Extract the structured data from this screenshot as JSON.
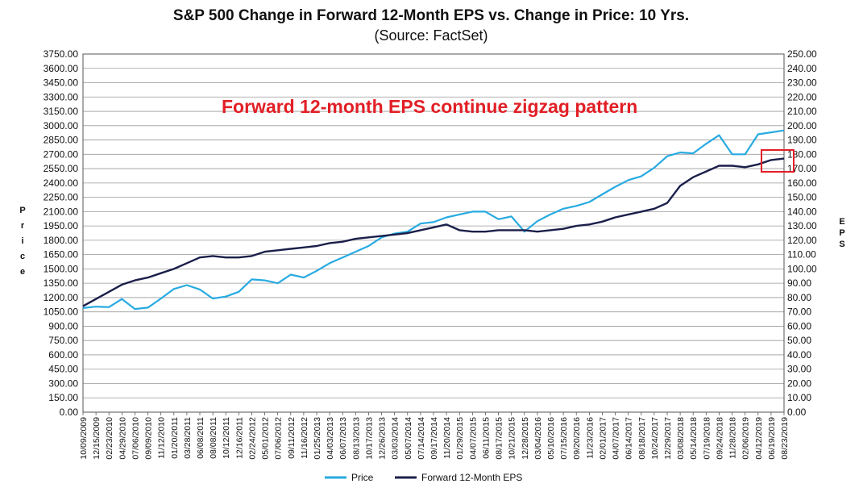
{
  "chart_data": {
    "type": "line",
    "title": "S&P 500 Change in Forward 12-Month EPS vs. Change in Price: 10 Yrs.",
    "subtitle": "(Source: FactSet)",
    "ylabel_left": "Price",
    "ylabel_right": "EPS",
    "ylim_left": [
      0,
      3750
    ],
    "ylim_right": [
      0,
      250
    ],
    "grid": true,
    "legend_position": "bottom",
    "annotation": "Forward 12-month EPS continue zigzag pattern",
    "colors": {
      "price": "#27aae1",
      "eps": "#1b1f4a",
      "annotation": "#e21f26",
      "grid": "#9a9a9a"
    },
    "left_ticks": [
      "0.00",
      "150.00",
      "300.00",
      "450.00",
      "600.00",
      "750.00",
      "900.00",
      "1050.00",
      "1200.00",
      "1350.00",
      "1500.00",
      "1650.00",
      "1800.00",
      "1950.00",
      "2100.00",
      "2250.00",
      "2400.00",
      "2550.00",
      "2700.00",
      "2850.00",
      "3000.00",
      "3150.00",
      "3300.00",
      "3450.00",
      "3600.00",
      "3750.00"
    ],
    "right_ticks": [
      "0.00",
      "10.00",
      "20.00",
      "30.00",
      "40.00",
      "50.00",
      "60.00",
      "70.00",
      "80.00",
      "90.00",
      "100.00",
      "110.00",
      "120.00",
      "130.00",
      "140.00",
      "150.00",
      "160.00",
      "170.00",
      "180.00",
      "190.00",
      "200.00",
      "210.00",
      "220.00",
      "230.00",
      "240.00",
      "250.00"
    ],
    "x_ticks": [
      "10/09/2009",
      "12/15/2009",
      "02/23/2010",
      "04/29/2010",
      "07/06/2010",
      "09/09/2010",
      "11/12/2010",
      "01/20/2011",
      "03/28/2011",
      "06/08/2011",
      "08/08/2011",
      "10/12/2011",
      "12/16/2011",
      "02/24/2012",
      "05/01/2012",
      "07/06/2012",
      "09/11/2012",
      "11/16/2012",
      "01/25/2013",
      "04/03/2013",
      "06/07/2013",
      "08/13/2013",
      "10/17/2013",
      "12/26/2013",
      "03/03/2014",
      "05/07/2014",
      "07/14/2014",
      "09/17/2014",
      "11/20/2014",
      "01/29/2015",
      "04/07/2015",
      "06/11/2015",
      "08/17/2015",
      "10/21/2015",
      "12/28/2015",
      "03/04/2016",
      "05/10/2016",
      "07/15/2016",
      "09/20/2016",
      "11/23/2016",
      "02/01/2017",
      "04/07/2017",
      "06/14/2017",
      "08/18/2017",
      "10/24/2017",
      "12/29/2017",
      "03/08/2018",
      "05/14/2018",
      "07/19/2018",
      "09/24/2018",
      "11/28/2018",
      "02/06/2019",
      "04/12/2019",
      "06/19/2019",
      "08/23/2019"
    ],
    "series": [
      {
        "name": "Price",
        "axis": "left",
        "x_index": [
          0,
          1,
          2,
          3,
          4,
          5,
          6,
          7,
          8,
          9,
          10,
          11,
          12,
          13,
          14,
          15,
          16,
          17,
          18,
          19,
          20,
          21,
          22,
          23,
          24,
          25,
          26,
          27,
          28,
          29,
          30,
          31,
          32,
          33,
          34,
          35,
          36,
          37,
          38,
          39,
          40,
          41,
          42,
          43,
          44,
          45,
          46,
          47,
          48,
          49,
          50,
          51,
          52,
          53,
          54
        ],
        "values": [
          1090,
          1105,
          1100,
          1185,
          1080,
          1095,
          1190,
          1290,
          1330,
          1285,
          1190,
          1210,
          1260,
          1390,
          1380,
          1350,
          1440,
          1410,
          1480,
          1560,
          1620,
          1680,
          1740,
          1830,
          1870,
          1890,
          1975,
          1990,
          2040,
          2070,
          2100,
          2100,
          2020,
          2050,
          1890,
          2000,
          2070,
          2130,
          2160,
          2200,
          2280,
          2360,
          2430,
          2470,
          2560,
          2680,
          2720,
          2710,
          2810,
          2900,
          2700,
          2700,
          2910,
          2930,
          2950
        ]
      },
      {
        "name": "Forward 12-Month EPS",
        "axis": "right",
        "x_index": [
          0,
          1,
          2,
          3,
          4,
          5,
          6,
          7,
          8,
          9,
          10,
          11,
          12,
          13,
          14,
          15,
          16,
          17,
          18,
          19,
          20,
          21,
          22,
          23,
          24,
          25,
          26,
          27,
          28,
          29,
          30,
          31,
          32,
          33,
          34,
          35,
          36,
          37,
          38,
          39,
          40,
          41,
          42,
          43,
          44,
          45,
          46,
          47,
          48,
          49,
          50,
          51,
          52,
          53,
          54
        ],
        "values": [
          74,
          79,
          84,
          89,
          92,
          94,
          97,
          100,
          104,
          108,
          109,
          108,
          108,
          109,
          112,
          113,
          114,
          115,
          116,
          118,
          119,
          121,
          122,
          123,
          124,
          125,
          127,
          129,
          131,
          127,
          126,
          126,
          127,
          127,
          127,
          126,
          127,
          128,
          130,
          131,
          133,
          136,
          138,
          140,
          142,
          146,
          158,
          164,
          168,
          172,
          172,
          171,
          173,
          176,
          177
        ]
      }
    ]
  }
}
